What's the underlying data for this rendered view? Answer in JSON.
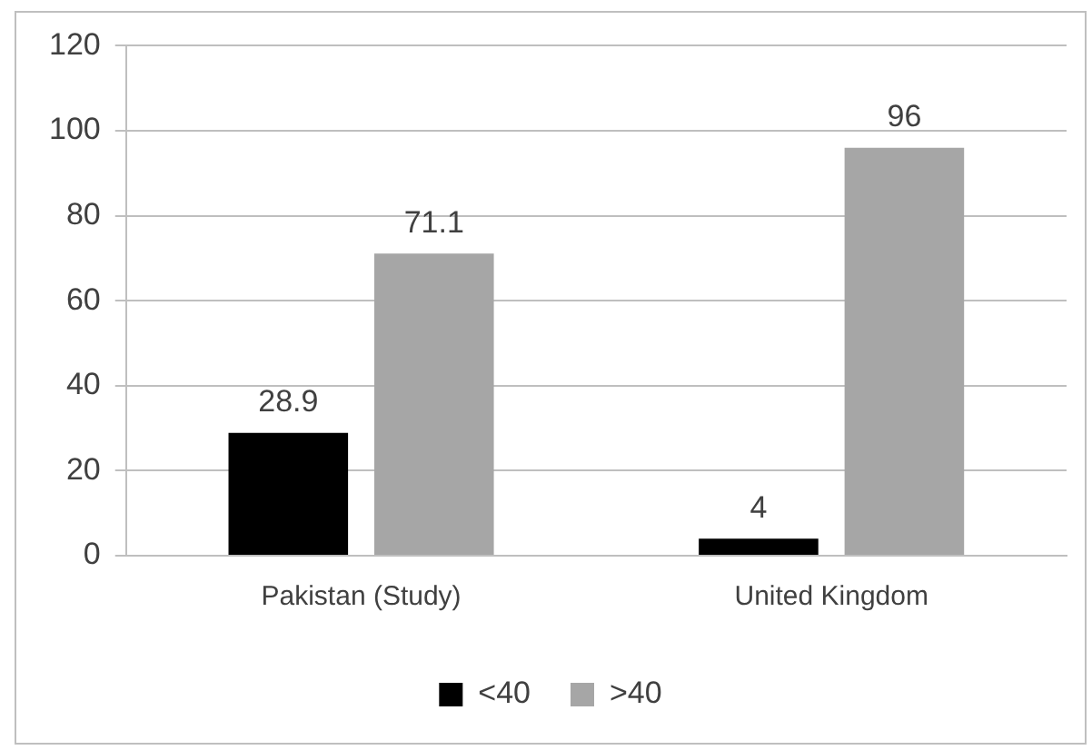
{
  "chart_data": {
    "type": "bar",
    "categories": [
      "Pakistan (Study)",
      "United Kingdom"
    ],
    "series": [
      {
        "name": "<40",
        "color": "#000000",
        "values": [
          28.9,
          4
        ]
      },
      {
        "name": ">40",
        "color": "#a6a6a6",
        "values": [
          71.1,
          96
        ]
      }
    ],
    "ylim": [
      0,
      120
    ],
    "yticks": [
      0,
      20,
      40,
      60,
      80,
      100,
      120
    ],
    "grid": "y",
    "legend": "bottom",
    "data_labels": true
  }
}
